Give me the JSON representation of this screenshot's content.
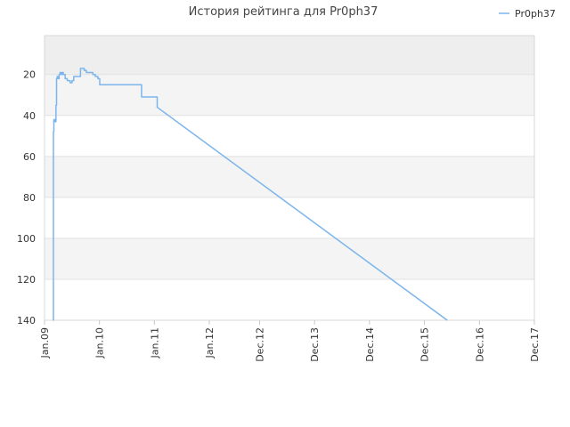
{
  "chart_data": {
    "type": "line",
    "title": "История рейтинга для Pr0ph37",
    "xlabel": "",
    "ylabel": "",
    "y_axis": "inverted",
    "ylim": [
      140,
      1
    ],
    "yticks": [
      20,
      40,
      60,
      80,
      100,
      120,
      140
    ],
    "xlim": [
      "2009-01",
      "2017-12"
    ],
    "x_ticks": [
      {
        "label": "Jan.09",
        "date": "2009-01"
      },
      {
        "label": "Jan.10",
        "date": "2010-01"
      },
      {
        "label": "Jan.11",
        "date": "2011-01"
      },
      {
        "label": "Jan.12",
        "date": "2012-01"
      },
      {
        "label": "Dec.12",
        "date": "2012-12"
      },
      {
        "label": "Dec.13",
        "date": "2013-12"
      },
      {
        "label": "Dec.14",
        "date": "2014-12"
      },
      {
        "label": "Dec.15",
        "date": "2015-12"
      },
      {
        "label": "Dec.16",
        "date": "2016-12"
      },
      {
        "label": "Dec.17",
        "date": "2017-12"
      }
    ],
    "grid": true,
    "legend_position": "top-right",
    "series": [
      {
        "name": "Pr0ph37",
        "color": "#7cb5ec",
        "step": true,
        "points": [
          {
            "date": "2009-02-27",
            "rank": 140
          },
          {
            "date": "2009-03-01",
            "rank": 48
          },
          {
            "date": "2009-03-04",
            "rank": 42
          },
          {
            "date": "2009-03-12",
            "rank": 43
          },
          {
            "date": "2009-03-18",
            "rank": 35
          },
          {
            "date": "2009-03-22",
            "rank": 22
          },
          {
            "date": "2009-03-26",
            "rank": 21
          },
          {
            "date": "2009-04-02",
            "rank": 22
          },
          {
            "date": "2009-04-08",
            "rank": 20
          },
          {
            "date": "2009-04-14",
            "rank": 19
          },
          {
            "date": "2009-04-22",
            "rank": 20
          },
          {
            "date": "2009-04-28",
            "rank": 19
          },
          {
            "date": "2009-05-06",
            "rank": 20
          },
          {
            "date": "2009-05-18",
            "rank": 22
          },
          {
            "date": "2009-06-01",
            "rank": 23
          },
          {
            "date": "2009-06-20",
            "rank": 24
          },
          {
            "date": "2009-07-03",
            "rank": 23
          },
          {
            "date": "2009-07-14",
            "rank": 21
          },
          {
            "date": "2009-08-28",
            "rank": 17
          },
          {
            "date": "2009-09-10",
            "rank": 17
          },
          {
            "date": "2009-09-22",
            "rank": 18
          },
          {
            "date": "2009-10-06",
            "rank": 19
          },
          {
            "date": "2009-10-26",
            "rank": 19
          },
          {
            "date": "2009-11-18",
            "rank": 20
          },
          {
            "date": "2009-12-04",
            "rank": 21
          },
          {
            "date": "2009-12-22",
            "rank": 22
          },
          {
            "date": "2010-01-03",
            "rank": 25
          },
          {
            "date": "2010-10-08",
            "rank": 31
          },
          {
            "date": "2011-01-20",
            "rank": 36
          },
          {
            "date": "2016-05-01",
            "rank": 140
          }
        ]
      }
    ]
  }
}
